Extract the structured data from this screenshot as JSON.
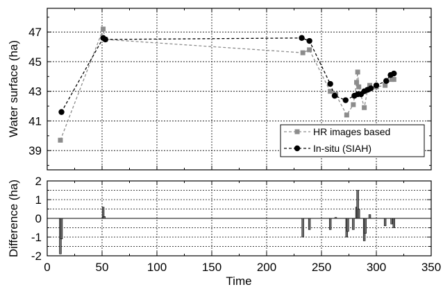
{
  "chart_data": [
    {
      "type": "line",
      "panel": "top",
      "title": "",
      "xlabel": "",
      "ylabel": "Water surface (ha)",
      "xlim": [
        0,
        350
      ],
      "ylim": [
        37.7,
        48.6
      ],
      "yticks": [
        39,
        41,
        43,
        45,
        47
      ],
      "xticks": [
        0,
        50,
        100,
        150,
        200,
        250,
        300,
        350
      ],
      "grid": true,
      "legend_position": "bottom-right",
      "series": [
        {
          "name": "HR images based",
          "color": "#8c8c8c",
          "marker": "square",
          "line_style": "dashed",
          "x": [
            12,
            51,
            53,
            233,
            239,
            258,
            263,
            273,
            279,
            282,
            283,
            284,
            289,
            292,
            294,
            300,
            308,
            314,
            316
          ],
          "y": [
            39.7,
            47.2,
            46.5,
            45.6,
            45.8,
            43.0,
            42.8,
            41.4,
            42.1,
            43.6,
            44.3,
            43.3,
            41.9,
            43.1,
            43.4,
            43.3,
            43.4,
            43.8,
            43.8
          ]
        },
        {
          "name": "In-situ (SIAH)",
          "color": "#000000",
          "marker": "circle",
          "line_style": "dashed",
          "x": [
            13,
            51,
            53,
            232,
            239,
            258,
            262,
            272,
            280,
            283,
            286,
            289,
            292,
            295,
            300,
            309,
            313,
            316
          ],
          "y": [
            41.6,
            46.6,
            46.5,
            46.6,
            46.4,
            43.5,
            42.7,
            42.4,
            42.7,
            42.8,
            42.8,
            43.0,
            43.1,
            43.2,
            43.4,
            43.7,
            44.1,
            44.2
          ]
        }
      ]
    },
    {
      "type": "bar",
      "panel": "bottom",
      "title": "",
      "xlabel": "Time",
      "ylabel": "Difference (ha)",
      "xlim": [
        0,
        350
      ],
      "ylim": [
        -2,
        2
      ],
      "yticks": [
        -2,
        -1,
        0,
        1,
        2
      ],
      "xticks": [
        0,
        50,
        100,
        150,
        200,
        250,
        300,
        350
      ],
      "grid": true,
      "x": [
        12,
        13,
        51,
        52,
        233,
        239,
        258,
        263,
        273,
        274,
        279,
        282,
        283,
        284,
        289,
        290,
        294,
        308,
        314,
        316
      ],
      "values": [
        -1.9,
        -1.1,
        0.6,
        0.1,
        -1.0,
        -0.6,
        -0.6,
        0.05,
        -1.0,
        -0.7,
        -0.6,
        0.6,
        1.5,
        0.5,
        -1.2,
        -0.8,
        0.2,
        -0.4,
        -0.3,
        -0.5
      ]
    }
  ]
}
